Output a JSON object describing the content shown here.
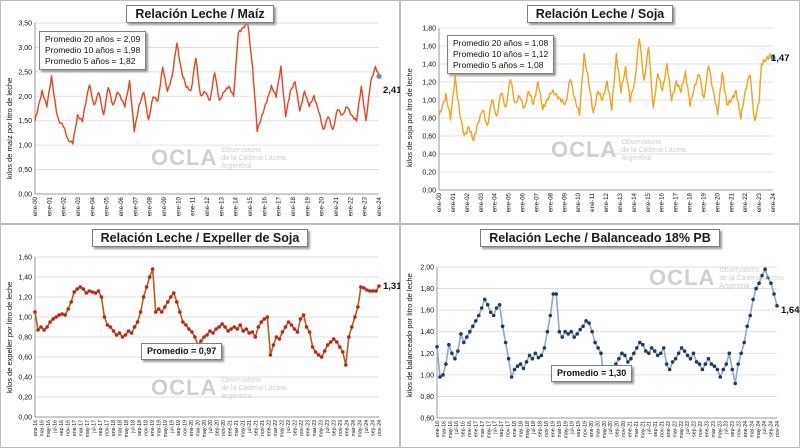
{
  "chart_data": [
    {
      "type": "line",
      "title": "Relación Leche / Maíz",
      "ylabel": "kilos de maíz por litro de leche",
      "ylim": [
        0,
        3.5
      ],
      "yticks": [
        "0,00",
        "0,50",
        "1,00",
        "1,50",
        "2,00",
        "2,50",
        "3,00",
        "3,50"
      ],
      "x_tick_labels": [
        "ene-00",
        "ene-01",
        "ene-02",
        "ene-03",
        "ene-04",
        "ene-05",
        "ene-06",
        "ene-07",
        "ene-08",
        "ene-09",
        "ene-10",
        "ene-11",
        "ene-12",
        "ene-13",
        "ene-14",
        "ene-15",
        "ene-16",
        "ene-17",
        "ene-18",
        "ene-19",
        "ene-20",
        "ene-21",
        "ene-22",
        "ene-23",
        "ene-24"
      ],
      "x_start": "ene-00",
      "color": "#e8431d",
      "markers": false,
      "last_label": "2,41",
      "averages": [
        "Promedio 20 años = 2,09",
        "Promedio 10 años = 1,98",
        "Promedio   5 años = 1,82"
      ],
      "keypoints": [
        [
          0,
          1.5
        ],
        [
          6,
          2.1
        ],
        [
          10,
          1.8
        ],
        [
          14,
          2.4
        ],
        [
          18,
          1.7
        ],
        [
          20,
          1.5
        ],
        [
          24,
          1.4
        ],
        [
          28,
          1.1
        ],
        [
          32,
          1.05
        ],
        [
          36,
          1.6
        ],
        [
          40,
          1.5
        ],
        [
          46,
          2.25
        ],
        [
          50,
          1.8
        ],
        [
          54,
          2.1
        ],
        [
          58,
          1.6
        ],
        [
          62,
          2.2
        ],
        [
          66,
          1.8
        ],
        [
          70,
          2.1
        ],
        [
          76,
          1.8
        ],
        [
          80,
          2.3
        ],
        [
          84,
          1.3
        ],
        [
          88,
          1.8
        ],
        [
          92,
          2.1
        ],
        [
          96,
          1.5
        ],
        [
          100,
          2.0
        ],
        [
          104,
          1.9
        ],
        [
          108,
          2.6
        ],
        [
          112,
          2.1
        ],
        [
          116,
          2.4
        ],
        [
          120,
          3.1
        ],
        [
          124,
          2.5
        ],
        [
          128,
          2.2
        ],
        [
          132,
          2.1
        ],
        [
          136,
          2.8
        ],
        [
          140,
          2.0
        ],
        [
          144,
          2.1
        ],
        [
          148,
          1.9
        ],
        [
          152,
          2.5
        ],
        [
          156,
          1.9
        ],
        [
          160,
          2.1
        ],
        [
          164,
          2.2
        ],
        [
          168,
          2.0
        ],
        [
          172,
          3.3
        ],
        [
          176,
          3.4
        ],
        [
          180,
          3.5
        ],
        [
          184,
          2.6
        ],
        [
          188,
          1.3
        ],
        [
          192,
          1.6
        ],
        [
          196,
          1.9
        ],
        [
          200,
          2.2
        ],
        [
          204,
          2.0
        ],
        [
          208,
          2.6
        ],
        [
          212,
          1.6
        ],
        [
          216,
          2.1
        ],
        [
          220,
          2.3
        ],
        [
          224,
          1.7
        ],
        [
          228,
          2.1
        ],
        [
          232,
          1.8
        ],
        [
          236,
          2.0
        ],
        [
          240,
          1.7
        ],
        [
          244,
          1.3
        ],
        [
          248,
          1.6
        ],
        [
          252,
          1.3
        ],
        [
          256,
          1.75
        ],
        [
          260,
          1.6
        ],
        [
          264,
          1.8
        ],
        [
          268,
          1.6
        ],
        [
          272,
          1.5
        ],
        [
          276,
          2.2
        ],
        [
          280,
          1.5
        ],
        [
          284,
          2.3
        ],
        [
          288,
          2.6
        ],
        [
          291,
          2.41
        ]
      ]
    },
    {
      "type": "line",
      "title": "Relación Leche / Soja",
      "ylabel": "kilos de soja por litro de leche",
      "ylim": [
        0,
        1.8
      ],
      "yticks": [
        "0,00",
        "0,20",
        "0,40",
        "0,60",
        "0,80",
        "1,00",
        "1,20",
        "1,40",
        "1,60",
        "1,80"
      ],
      "x_tick_labels": [
        "ene-00",
        "ene-01",
        "ene-02",
        "ene-03",
        "ene-04",
        "ene-05",
        "ene-06",
        "ene-07",
        "ene-08",
        "ene-09",
        "ene-10",
        "ene-11",
        "ene-12",
        "ene-13",
        "ene-14",
        "ene-15",
        "ene-16",
        "ene-17",
        "ene-18",
        "ene-19",
        "ene-20",
        "ene-21",
        "ene-22",
        "ene-23",
        "ene-24"
      ],
      "x_start": "ene-00",
      "color": "#f2a31b",
      "markers": false,
      "last_label": "1,47",
      "averages": [
        "Promedio 20 años = 1,08",
        "Promedio 10 años = 1,12",
        "Promedio   5 años = 1,08"
      ],
      "keypoints": [
        [
          0,
          0.82
        ],
        [
          6,
          1.05
        ],
        [
          10,
          0.8
        ],
        [
          14,
          1.25
        ],
        [
          18,
          0.85
        ],
        [
          22,
          0.6
        ],
        [
          26,
          0.7
        ],
        [
          30,
          0.55
        ],
        [
          34,
          0.75
        ],
        [
          38,
          0.9
        ],
        [
          42,
          0.7
        ],
        [
          46,
          1.02
        ],
        [
          50,
          0.8
        ],
        [
          54,
          1.1
        ],
        [
          58,
          0.9
        ],
        [
          62,
          1.25
        ],
        [
          66,
          0.95
        ],
        [
          70,
          1.05
        ],
        [
          74,
          0.9
        ],
        [
          78,
          1.1
        ],
        [
          82,
          0.95
        ],
        [
          86,
          1.2
        ],
        [
          90,
          0.9
        ],
        [
          94,
          1.0
        ],
        [
          98,
          1.1
        ],
        [
          102,
          1.05
        ],
        [
          106,
          1.0
        ],
        [
          110,
          0.95
        ],
        [
          114,
          1.25
        ],
        [
          118,
          1.0
        ],
        [
          122,
          0.85
        ],
        [
          126,
          1.5
        ],
        [
          130,
          1.2
        ],
        [
          134,
          0.85
        ],
        [
          138,
          1.1
        ],
        [
          142,
          1.0
        ],
        [
          146,
          1.2
        ],
        [
          150,
          0.9
        ],
        [
          154,
          1.5
        ],
        [
          158,
          1.1
        ],
        [
          162,
          1.35
        ],
        [
          166,
          1.0
        ],
        [
          170,
          1.2
        ],
        [
          174,
          1.7
        ],
        [
          178,
          1.2
        ],
        [
          182,
          1.6
        ],
        [
          186,
          0.9
        ],
        [
          190,
          1.3
        ],
        [
          194,
          1.1
        ],
        [
          198,
          1.4
        ],
        [
          202,
          1.0
        ],
        [
          206,
          1.2
        ],
        [
          210,
          1.1
        ],
        [
          214,
          1.3
        ],
        [
          218,
          0.95
        ],
        [
          222,
          1.15
        ],
        [
          226,
          1.3
        ],
        [
          230,
          1.0
        ],
        [
          234,
          1.4
        ],
        [
          238,
          1.1
        ],
        [
          242,
          0.85
        ],
        [
          246,
          1.3
        ],
        [
          250,
          0.95
        ],
        [
          254,
          1.0
        ],
        [
          258,
          1.1
        ],
        [
          262,
          0.8
        ],
        [
          266,
          1.1
        ],
        [
          270,
          1.3
        ],
        [
          274,
          0.75
        ],
        [
          278,
          1.0
        ],
        [
          280,
          1.4
        ],
        [
          284,
          1.45
        ],
        [
          288,
          1.5
        ],
        [
          290,
          1.47
        ]
      ]
    },
    {
      "type": "line",
      "title": "Relación Leche / Expeller de Soja",
      "ylabel": "kilos de expeller por litro de leche",
      "ylim": [
        0,
        1.6
      ],
      "yticks": [
        "0,00",
        "0,20",
        "0,40",
        "0,60",
        "0,80",
        "1,00",
        "1,20",
        "1,40",
        "1,60"
      ],
      "x_tick_labels": [
        "ene-16",
        "mar-16",
        "may-16",
        "jul-16",
        "sep-16",
        "nov-16",
        "ene-17",
        "mar-17",
        "may-17",
        "jul-17",
        "sep-17",
        "nov-17",
        "ene-18",
        "mar-18",
        "may-18",
        "jul-18",
        "sep-18",
        "nov-18",
        "ene-19",
        "mar-19",
        "may-19",
        "jul-19",
        "sep-19",
        "nov-19",
        "ene-20",
        "mar-20",
        "may-20",
        "jul-20",
        "sep-20",
        "nov-20",
        "ene-21",
        "mar-21",
        "may-21",
        "jul-21",
        "sep-21",
        "nov-21",
        "ene-22",
        "mar-22",
        "may-22",
        "jul-22",
        "sep-22",
        "nov-22",
        "ene-23",
        "mar-23",
        "may-23",
        "jul-23",
        "sep-23",
        "nov-23",
        "ene-24",
        "mar-24",
        "may-24",
        "jul-24",
        "sep-24",
        "nov-24"
      ],
      "x_start": "ene-16",
      "color": "#c0221a",
      "line_color": "#b4601b",
      "markers": true,
      "last_label": "1,31",
      "averages": [
        "Promedio = 0,97"
      ],
      "values": [
        1.05,
        0.87,
        0.9,
        0.87,
        0.9,
        0.95,
        0.98,
        1.0,
        1.02,
        1.03,
        1.02,
        1.08,
        1.15,
        1.25,
        1.28,
        1.3,
        1.28,
        1.24,
        1.26,
        1.25,
        1.24,
        1.26,
        1.2,
        1.0,
        0.92,
        0.9,
        0.86,
        0.82,
        0.84,
        0.8,
        0.82,
        0.86,
        0.84,
        0.9,
        0.95,
        1.05,
        1.2,
        1.3,
        1.4,
        1.48,
        1.05,
        1.08,
        1.05,
        1.1,
        1.15,
        1.2,
        1.24,
        1.15,
        1.05,
        0.95,
        0.92,
        0.88,
        0.85,
        0.8,
        0.72,
        0.76,
        0.8,
        0.82,
        0.86,
        0.84,
        0.88,
        0.9,
        0.93,
        0.9,
        0.86,
        0.88,
        0.9,
        0.88,
        0.92,
        0.86,
        0.88,
        0.84,
        0.85,
        0.8,
        0.9,
        0.95,
        0.98,
        1.0,
        0.62,
        0.72,
        0.8,
        0.78,
        0.85,
        0.9,
        0.95,
        0.92,
        0.88,
        0.85,
        0.98,
        1.02,
        0.9,
        0.85,
        0.7,
        0.65,
        0.62,
        0.6,
        0.66,
        0.72,
        0.75,
        0.78,
        0.75,
        0.7,
        0.65,
        0.52,
        0.8,
        0.9,
        1.0,
        1.1,
        1.3,
        1.29,
        1.27,
        1.26,
        1.26,
        1.26,
        1.31
      ]
    },
    {
      "type": "line",
      "title": "Relación Leche / Balanceado 18% PB",
      "ylabel": "kilos de balanceado por litro de leche",
      "ylim": [
        0.6,
        2.0
      ],
      "yticks": [
        "0,60",
        "0,80",
        "1,00",
        "1,20",
        "1,40",
        "1,60",
        "1,80",
        "2,00"
      ],
      "x_tick_labels": [
        "ene-16",
        "mar-16",
        "may-16",
        "jul-16",
        "sep-16",
        "nov-16",
        "ene-17",
        "mar-17",
        "may-17",
        "jul-17",
        "sep-17",
        "nov-17",
        "ene-18",
        "mar-18",
        "may-18",
        "jul-18",
        "sep-18",
        "nov-18",
        "ene-19",
        "mar-19",
        "may-19",
        "jul-19",
        "sep-19",
        "nov-19",
        "ene-20",
        "mar-20",
        "may-20",
        "jul-20",
        "sep-20",
        "nov-20",
        "ene-21",
        "mar-21",
        "may-21",
        "jul-21",
        "sep-21",
        "nov-21",
        "ene-22",
        "mar-22",
        "may-22",
        "jul-22",
        "sep-22",
        "nov-22",
        "ene-23",
        "mar-23",
        "may-23",
        "jul-23",
        "sep-23",
        "nov-23",
        "ene-24",
        "mar-24",
        "may-24",
        "jul-24",
        "sep-24",
        "nov-24"
      ],
      "x_start": "ene-16",
      "color": "#1f3a5f",
      "line_color": "#8ea9c8",
      "markers": true,
      "last_label": "1,64",
      "averages": [
        "Promedio = 1,30"
      ],
      "values": [
        1.26,
        0.98,
        1.0,
        1.1,
        1.28,
        1.2,
        1.15,
        1.22,
        1.38,
        1.3,
        1.35,
        1.4,
        1.45,
        1.5,
        1.55,
        1.62,
        1.7,
        1.65,
        1.58,
        1.55,
        1.62,
        1.65,
        1.45,
        1.3,
        1.15,
        0.98,
        1.05,
        1.08,
        1.1,
        1.06,
        1.12,
        1.18,
        1.15,
        1.2,
        1.16,
        1.18,
        1.25,
        1.4,
        1.55,
        1.75,
        1.75,
        1.4,
        1.35,
        1.4,
        1.38,
        1.4,
        1.35,
        1.38,
        1.42,
        1.45,
        1.5,
        1.48,
        1.4,
        1.3,
        1.25,
        1.2,
        0.95,
        1.0,
        0.95,
        1.05,
        1.1,
        1.15,
        1.2,
        1.18,
        1.12,
        1.15,
        1.2,
        1.25,
        1.3,
        1.28,
        1.22,
        1.2,
        1.25,
        1.22,
        1.18,
        1.2,
        1.25,
        1.1,
        1.05,
        1.12,
        1.15,
        1.2,
        1.25,
        1.22,
        1.18,
        1.15,
        1.2,
        1.12,
        1.1,
        1.05,
        1.1,
        1.15,
        1.1,
        1.08,
        1.05,
        0.98,
        1.05,
        1.1,
        1.2,
        1.05,
        0.92,
        1.1,
        1.2,
        1.3,
        1.45,
        1.55,
        1.7,
        1.8,
        1.85,
        1.92,
        1.98,
        1.9,
        1.85,
        1.75,
        1.64
      ]
    }
  ],
  "watermark": {
    "logo": "OCLA",
    "lines": [
      "Observatorio",
      "de la Cadena Láctea",
      "Argentina"
    ]
  }
}
